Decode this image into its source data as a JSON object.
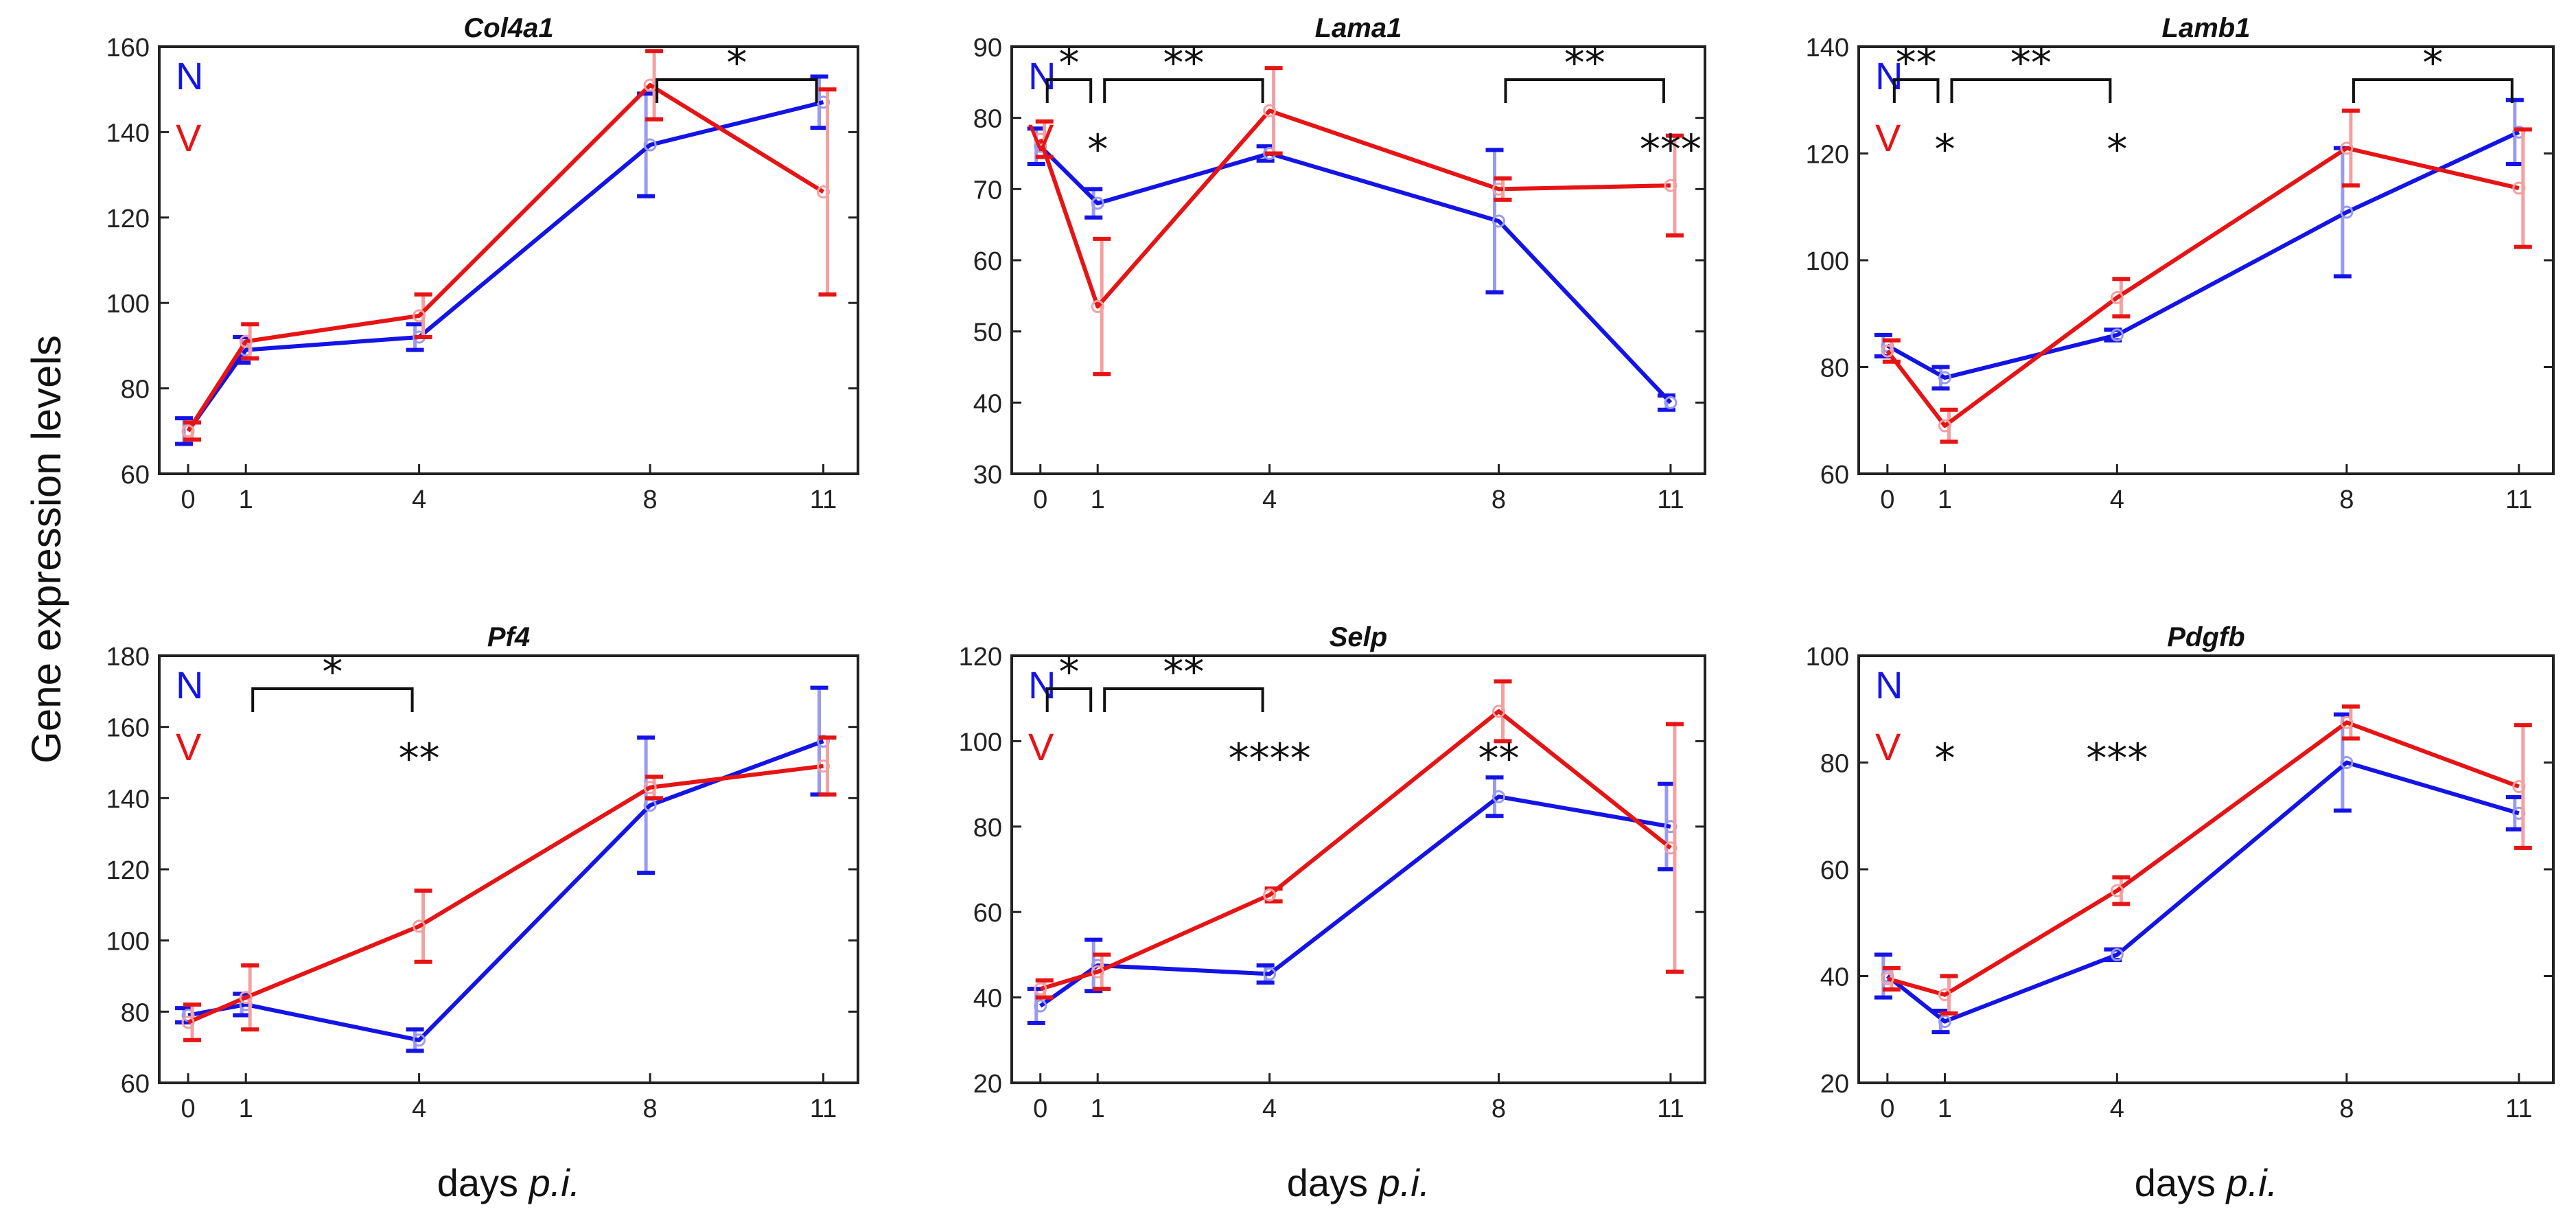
{
  "figure": {
    "ylabel": "Gene expression levels",
    "xlabel_main": "days ",
    "xlabel_italic": "p.i.",
    "colors": {
      "N": "#1414e6",
      "V": "#e61414",
      "N_light": "#9a9af0",
      "V_light": "#f4a0a0"
    }
  },
  "chart_data": [
    {
      "type": "line",
      "title": "Col4a1",
      "x": [
        0,
        1,
        4,
        8,
        11
      ],
      "ylim": [
        60,
        160
      ],
      "yticks": [
        60,
        80,
        100,
        120,
        140,
        160
      ],
      "series": [
        {
          "name": "N",
          "values": [
            70,
            89,
            92,
            137,
            147
          ],
          "err": [
            3,
            3,
            3,
            12,
            6
          ]
        },
        {
          "name": "V",
          "values": [
            70,
            91,
            97,
            151,
            126
          ],
          "err": [
            2,
            4,
            5,
            8,
            24
          ]
        }
      ],
      "brackets": [
        {
          "from": 8,
          "to": 11,
          "label": "*"
        }
      ],
      "stars": []
    },
    {
      "type": "line",
      "title": "Lama1",
      "x": [
        0,
        1,
        4,
        8,
        11
      ],
      "ylim": [
        30,
        90
      ],
      "yticks": [
        30,
        40,
        50,
        60,
        70,
        80,
        90
      ],
      "series": [
        {
          "name": "N",
          "values": [
            76,
            68,
            75,
            65.5,
            40
          ],
          "err": [
            2.5,
            2,
            1,
            10,
            1
          ]
        },
        {
          "name": "V",
          "values": [
            77,
            53.5,
            81,
            70,
            70.5
          ],
          "err": [
            2.5,
            9.5,
            6,
            1.5,
            7
          ]
        }
      ],
      "brackets": [
        {
          "from": 0,
          "to": 1,
          "label": "*"
        },
        {
          "from": 1,
          "to": 4,
          "label": "**"
        },
        {
          "from": 8,
          "to": 11,
          "label": "**"
        }
      ],
      "stars": [
        {
          "x": 1,
          "label": "*"
        },
        {
          "x": 11,
          "label": "***"
        }
      ]
    },
    {
      "type": "line",
      "title": "Lamb1",
      "x": [
        0,
        1,
        4,
        8,
        11
      ],
      "ylim": [
        60,
        140
      ],
      "yticks": [
        60,
        80,
        100,
        120,
        140
      ],
      "series": [
        {
          "name": "N",
          "values": [
            84,
            78,
            86,
            109,
            124
          ],
          "err": [
            2,
            2,
            1,
            12,
            6
          ]
        },
        {
          "name": "V",
          "values": [
            83,
            69,
            93,
            121,
            113.5
          ],
          "err": [
            2,
            3,
            3.5,
            7,
            11
          ]
        }
      ],
      "brackets": [
        {
          "from": 0,
          "to": 1,
          "label": "**"
        },
        {
          "from": 1,
          "to": 4,
          "label": "**"
        },
        {
          "from": 8,
          "to": 11,
          "label": "*"
        }
      ],
      "stars": [
        {
          "x": 1,
          "label": "*"
        },
        {
          "x": 4,
          "label": "*"
        }
      ]
    },
    {
      "type": "line",
      "title": "Pf4",
      "x": [
        0,
        1,
        4,
        8,
        11
      ],
      "ylim": [
        60,
        180
      ],
      "yticks": [
        60,
        80,
        100,
        120,
        140,
        160,
        180
      ],
      "series": [
        {
          "name": "N",
          "values": [
            79,
            82,
            72,
            138,
            156
          ],
          "err": [
            2,
            3,
            3,
            19,
            15
          ]
        },
        {
          "name": "V",
          "values": [
            77,
            84,
            104,
            143,
            149
          ],
          "err": [
            5,
            9,
            10,
            3,
            8
          ]
        }
      ],
      "brackets": [
        {
          "from": 1,
          "to": 4,
          "label": "*"
        }
      ],
      "stars": [
        {
          "x": 4,
          "label": "**"
        }
      ]
    },
    {
      "type": "line",
      "title": "Selp",
      "x": [
        0,
        1,
        4,
        8,
        11
      ],
      "ylim": [
        20,
        120
      ],
      "yticks": [
        20,
        40,
        60,
        80,
        100,
        120
      ],
      "series": [
        {
          "name": "N",
          "values": [
            38,
            47.5,
            45.5,
            87,
            80
          ],
          "err": [
            4,
            6,
            2,
            4.5,
            10
          ]
        },
        {
          "name": "V",
          "values": [
            42,
            46,
            64,
            107,
            75
          ],
          "err": [
            2,
            4,
            1.5,
            7,
            29
          ]
        }
      ],
      "brackets": [
        {
          "from": 0,
          "to": 1,
          "label": "*"
        },
        {
          "from": 1,
          "to": 4,
          "label": "**"
        }
      ],
      "stars": [
        {
          "x": 4,
          "label": "****"
        },
        {
          "x": 8,
          "label": "**"
        }
      ]
    },
    {
      "type": "line",
      "title": "Pdgfb",
      "x": [
        0,
        1,
        4,
        8,
        11
      ],
      "ylim": [
        20,
        100
      ],
      "yticks": [
        20,
        40,
        60,
        80,
        100
      ],
      "series": [
        {
          "name": "N",
          "values": [
            40,
            31.5,
            44,
            80,
            70.5
          ],
          "err": [
            4,
            2,
            1,
            9,
            3
          ]
        },
        {
          "name": "V",
          "values": [
            39.5,
            36.5,
            56,
            87.5,
            75.5
          ],
          "err": [
            2,
            3.5,
            2.5,
            3,
            11.5
          ]
        }
      ],
      "brackets": [],
      "stars": [
        {
          "x": 1,
          "label": "*"
        },
        {
          "x": 4,
          "label": "***"
        }
      ]
    }
  ]
}
